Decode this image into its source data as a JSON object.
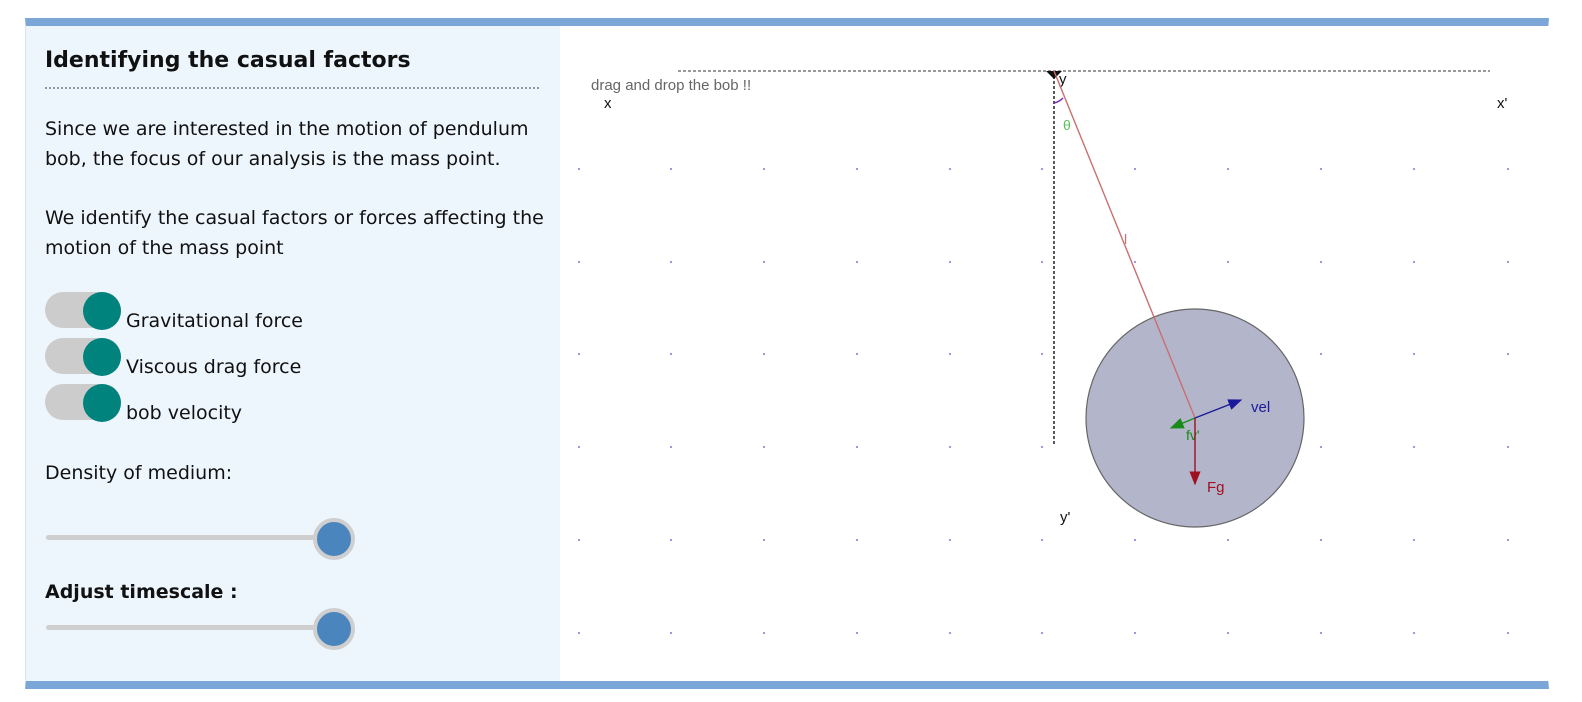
{
  "panel": {
    "title": "Identifying the casual factors",
    "paragraph1": "Since we are interested in the motion of pendulum bob, the focus of our analysis is the mass point.",
    "paragraph2": "We identify the casual factors or forces affecting the motion of the mass point",
    "toggles": [
      {
        "label": "Gravitational force",
        "on": true
      },
      {
        "label": "Viscous drag force",
        "on": true
      },
      {
        "label": "bob velocity",
        "on": true
      }
    ],
    "density_label": "Density of medium:",
    "density_value_fraction": 1.0,
    "timescale_label": "Adjust timescale :",
    "timescale_value_fraction": 1.0
  },
  "simulation": {
    "hint": "drag and drop the bob !!",
    "axis_labels": {
      "x": "x",
      "x_prime": "x'",
      "y": "y",
      "y_prime": "y'"
    },
    "labels": {
      "theta": "θ",
      "length": "l",
      "velocity": "vel",
      "drag": "fv'",
      "gravity": "Fg"
    },
    "colors": {
      "accent": "#7aa6d8",
      "toggle_on": "#00827d",
      "slider_thumb": "#4a86bd",
      "bob_fill": "#b3b5cb",
      "string": "#c87070",
      "velocity": "#1a1a9a",
      "drag": "#1a8a1a",
      "gravity": "#a01020",
      "theta": "#5bbf5b",
      "grid_dot": "#8f8fe0"
    }
  }
}
